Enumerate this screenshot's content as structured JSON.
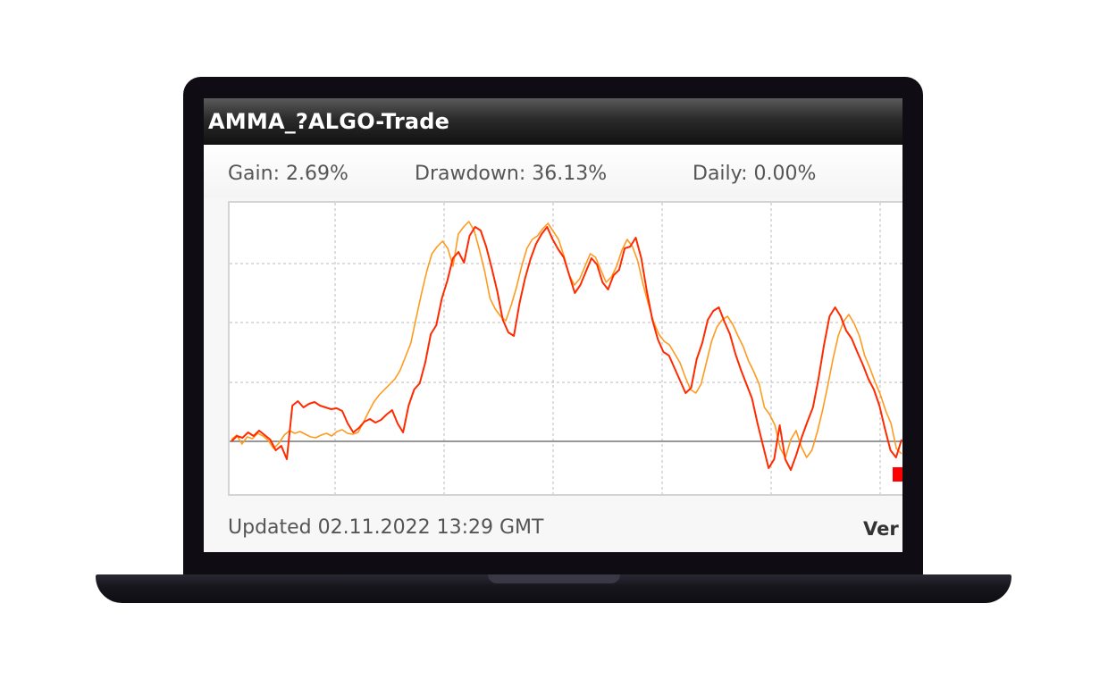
{
  "widget": {
    "title": "AMMA_?ALGO-Trade"
  },
  "stats": {
    "gain": "Gain: 2.69%",
    "drawdown": "Drawdown: 36.13%",
    "daily": "Daily: 0.00%"
  },
  "footer": {
    "updated": "Updated 02.11.2022 13:29 GMT",
    "link_partial": "Ver"
  },
  "colors": {
    "equity_line": "#ff2a00",
    "balance_line": "#ff9a1e",
    "baseline": "#777777",
    "grid": "#bbbbbb",
    "marker": "#ff0000"
  },
  "chart_data": {
    "type": "line",
    "grid": true,
    "y_relative_to_baseline": 0,
    "series": [
      {
        "color": "#ff9a1e",
        "values": [
          2,
          7,
          -3,
          5,
          3,
          9,
          6,
          1,
          -8,
          -2,
          7,
          12,
          9,
          11,
          8,
          5,
          4,
          7,
          9,
          6,
          11,
          13,
          9,
          8,
          10,
          21,
          33,
          44,
          52,
          58,
          64,
          70,
          80,
          95,
          110,
          138,
          165,
          190,
          210,
          218,
          224,
          216,
          196,
          232,
          240,
          246,
          236,
          214,
          190,
          160,
          148,
          140,
          135,
          152,
          172,
          196,
          216,
          226,
          230,
          238,
          244,
          235,
          226,
          208,
          186,
          175,
          182,
          196,
          210,
          206,
          192,
          178,
          184,
          196,
          214,
          226,
          218,
          202,
          176,
          154,
          134,
          120,
          112,
          108,
          98,
          88,
          72,
          58,
          54,
          64,
          88,
          112,
          128,
          136,
          140,
          131,
          118,
          106,
          90,
          78,
          64,
          38,
          30,
          18,
          -8,
          -18,
          2,
          12,
          -6,
          -18,
          -10,
          10,
          34,
          62,
          92,
          118,
          134,
          142,
          132,
          118,
          96,
          82,
          66,
          52,
          34,
          20,
          -8,
          -14
        ]
      },
      {
        "color": "#ff2a00",
        "values": [
          0,
          6,
          4,
          10,
          6,
          12,
          7,
          2,
          -10,
          -5,
          -20,
          40,
          45,
          38,
          42,
          44,
          40,
          38,
          36,
          37,
          34,
          20,
          10,
          15,
          22,
          25,
          21,
          24,
          30,
          35,
          20,
          10,
          40,
          58,
          65,
          88,
          120,
          130,
          160,
          180,
          205,
          212,
          200,
          230,
          240,
          236,
          218,
          194,
          168,
          136,
          122,
          118,
          154,
          182,
          204,
          221,
          232,
          240,
          226,
          215,
          206,
          186,
          166,
          175,
          190,
          205,
          198,
          178,
          170,
          186,
          192,
          216,
          218,
          228,
          205,
          168,
          136,
          114,
          100,
          96,
          82,
          68,
          54,
          60,
          92,
          110,
          136,
          146,
          150,
          134,
          120,
          98,
          80,
          64,
          48,
          20,
          -5,
          -30,
          -20,
          18,
          -20,
          -32,
          -15,
          5,
          22,
          38,
          70,
          108,
          140,
          150,
          140,
          124,
          115,
          100,
          86,
          70,
          58,
          40,
          14,
          -10,
          -18,
          2
        ]
      }
    ]
  }
}
